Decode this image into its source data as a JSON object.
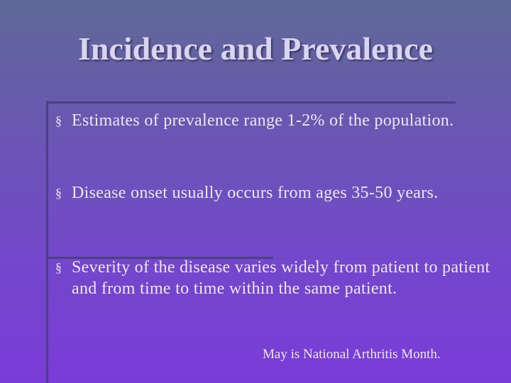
{
  "header": {
    "title": "Incidence and Prevalence"
  },
  "bullet_marker": "§",
  "bullets": [
    "Estimates of prevalence range 1-2% of the population.",
    "Disease onset usually occurs from ages 35-50 years.",
    "Severity of the disease varies widely from patient to patient and from time to time within the same patient."
  ],
  "footnote": "May is National Arthritis Month."
}
